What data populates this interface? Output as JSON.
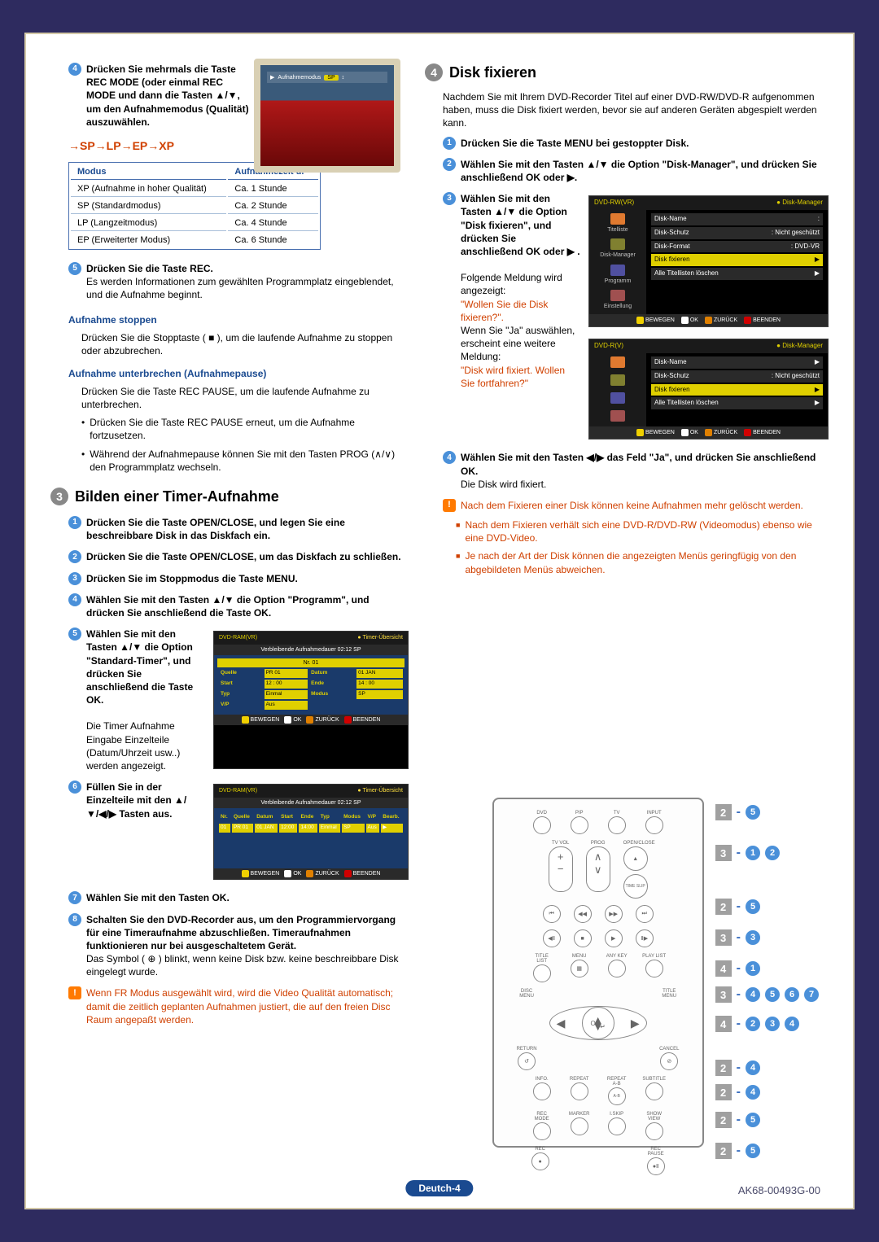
{
  "colors": {
    "page_bg": "#2e2b5f",
    "panel_bg": "#ffffff",
    "panel_border": "#d4c9a8",
    "accent_blue": "#1a4a90",
    "accent_orange": "#d04000",
    "step_blue": "#4a90d9",
    "warn_orange": "#ff7a00",
    "yellow": "#e0d000"
  },
  "left": {
    "step4_text": "Drücken Sie mehrmals die Taste REC MODE (oder einmal REC MODE und dann die Tasten ▲/▼, um den Aufnahmemodus (Qualität) auszuwählen.",
    "cycle": "→SP→LP→EP→XP",
    "tv_bar_label": "Aufnahmemodus",
    "tv_bar_mode": "SP",
    "mode_table": {
      "head_modus": "Modus",
      "head_zeit": "Aufnahmezeit u.",
      "rows": [
        [
          "XP (Aufnahme in hoher Qualität)",
          "Ca. 1 Stunde"
        ],
        [
          "SP (Standardmodus)",
          "Ca. 2 Stunde"
        ],
        [
          "LP (Langzeitmodus)",
          "Ca. 4 Stunde"
        ],
        [
          "EP (Erweiterter Modus)",
          "Ca. 6 Stunde"
        ]
      ]
    },
    "step5_head": "Drücken Sie die Taste REC.",
    "step5_body": "Es werden Informationen zum gewählten Programmplatz eingeblendet, und die Aufnahme beginnt.",
    "stop_head": "Aufnahme stoppen",
    "stop_body": "Drücken Sie die Stopptaste ( ■ ), um die laufende Aufnahme zu stoppen oder abzubrechen.",
    "pause_head": "Aufnahme unterbrechen (Aufnahmepause)",
    "pause_body": "Drücken Sie die Taste REC PAUSE, um die laufende Aufnahme zu unterbrechen.",
    "pause_b1": "Drücken Sie die Taste REC PAUSE erneut, um die Aufnahme fortzusetzen.",
    "pause_b2": "Während der Aufnahmepause können Sie mit den Tasten PROG (∧/∨) den Programmplatz wechseln.",
    "sec3_title": "Bilden einer Timer-Aufnahme",
    "sec3_num": "3",
    "s3_1": "Drücken Sie die Taste OPEN/CLOSE, und legen Sie eine beschreibbare Disk in das Diskfach ein.",
    "s3_2": "Drücken Sie die Taste OPEN/CLOSE, um das Diskfach zu schließen.",
    "s3_3": "Drücken Sie im Stoppmodus die Taste MENU.",
    "s3_4": "Wählen Sie mit den Tasten ▲/▼ die Option \"Programm\", und drücken Sie anschließend die Taste OK.",
    "s3_5": "Wählen Sie mit den Tasten ▲/▼ die Option \"Standard-Timer\", und drücken Sie anschließend die Taste OK.",
    "s3_5b": "Die Timer Aufnahme Eingabe Einzelteile (Datum/Uhrzeit usw..) werden angezeigt.",
    "s3_6": "Füllen Sie in der Einzelteile mit den ▲/▼/◀/▶ Tasten aus.",
    "s3_7": "Wählen Sie mit den Tasten OK.",
    "s3_8_head": "Schalten Sie den DVD-Recorder aus, um den Programmiervorgang für eine Timeraufnahme abzuschließen. Timeraufnahmen funktionieren nur bei ausgeschaltetem Gerät.",
    "s3_8b": "Das Symbol ( ⊕ ) blinkt, wenn keine Disk bzw. keine beschreibbare Disk eingelegt wurde.",
    "s3_warn": "Wenn FR Modus ausgewählt wird, wird die Video Qualität automatisch; damit die zeitlich geplanten Aufnahmen justiert, die auf den freien Disc Raum angepaßt werden."
  },
  "right": {
    "sec4_title": "Disk fixieren",
    "sec4_num": "4",
    "intro": "Nachdem Sie mit Ihrem DVD-Recorder Titel auf einer DVD-RW/DVD-R aufgenommen haben, muss die Disk fixiert werden, bevor sie auf anderen Geräten abgespielt werden kann.",
    "r1": "Drücken Sie die Taste MENU bei gestoppter Disk.",
    "r2": "Wählen Sie mit den Tasten ▲/▼ die Option \"Disk-Manager\", und drücken Sie anschließend OK oder ▶.",
    "r3": "Wählen Sie mit den Tasten ▲/▼ die Option \"Disk fixieren\", und drücken Sie anschließend OK oder ▶ .",
    "r3b": "Folgende Meldung wird angezeigt:",
    "r3c": "\"Wollen Sie die Disk fixieren?\".",
    "r3d": "Wenn Sie \"Ja\" auswählen, erscheint eine weitere Meldung:",
    "r3e": "\"Disk wird fixiert. Wollen Sie fortfahren?\"",
    "r4": "Wählen Sie mit den Tasten ◀/▶ das Feld \"Ja\", und drücken Sie anschließend OK.",
    "r4b": "Die Disk wird fixiert.",
    "warn": "Nach dem Fixieren einer Disk können keine Aufnahmen mehr gelöscht werden.",
    "warn_b1": "Nach dem Fixieren verhält sich eine DVD-R/DVD-RW (Videomodus) ebenso wie eine DVD-Video.",
    "warn_b2": "Je nach der Art der Disk können die angezeigten Menüs geringfügig von den abgebildeten Menüs abweichen."
  },
  "menu1": {
    "title_l": "DVD-RW(VR)",
    "title_r": "Disk-Manager",
    "side": [
      "Titelliste",
      "",
      "Disk-Manager",
      "Programm",
      "Einstellung"
    ],
    "rows": [
      [
        "Disk-Name",
        ":",
        ""
      ],
      [
        "Disk-Schutz",
        ": Nicht geschützt",
        ""
      ],
      [
        "Disk-Format",
        ": DVD-VR",
        ""
      ],
      [
        "Disk fixieren",
        "",
        "▶"
      ],
      [
        "Alle Titellisten löschen",
        "",
        "▶"
      ]
    ],
    "foot": [
      [
        "#f0d000",
        "BEWEGEN"
      ],
      [
        "#fff",
        "OK"
      ],
      [
        "#e08000",
        "ZURÜCK"
      ],
      [
        "#d00000",
        "BEENDEN"
      ]
    ]
  },
  "menu2": {
    "title_l": "DVD-R(V)",
    "title_r": "Disk-Manager",
    "rows": [
      [
        "Disk-Name",
        ":",
        "▶"
      ],
      [
        "Disk-Schutz",
        ": Nicht geschützt",
        "▶"
      ],
      [
        "Disk fixieren",
        "",
        "▶"
      ],
      [
        "Alle Titellisten löschen",
        "",
        "▶"
      ]
    ]
  },
  "timer1": {
    "title_l": "DVD-RAM(VR)",
    "title_r": "Timer-Übersicht",
    "sub": "Verbleibende Aufnahmedauer 02:12 SP",
    "nr": "Nr. 01",
    "fields": [
      [
        "Quelle",
        "PR 01"
      ],
      [
        "Datum",
        "01 JAN"
      ],
      [
        "Start",
        "12 : 00"
      ],
      [
        "Ende",
        "14 : 00"
      ],
      [
        "Typ",
        "Einmal"
      ],
      [
        "Modus",
        "SP"
      ],
      [
        "V/P",
        "Aus"
      ]
    ]
  },
  "timer2": {
    "title_l": "DVD-RAM(VR)",
    "title_r": "Timer-Übersicht",
    "sub": "Verbleibende Aufnahmedauer 02:12 SP",
    "head": [
      "Nr.",
      "Quelle",
      "Datum",
      "Start",
      "Ende",
      "Typ",
      "Modus",
      "V/P",
      "Bearb."
    ],
    "row": [
      "01",
      "PR 01",
      "01 JAN",
      "12:00",
      "14:00",
      "Einmal",
      "SP",
      "Aus",
      "▶"
    ]
  },
  "remote": {
    "row1": [
      "DVD",
      "PIP",
      "TV",
      "INPUT"
    ],
    "tvvol": "TV VOL",
    "prog": "PROG",
    "openclose": "OPEN/CLOSE",
    "timeslip": "TIME SLIP",
    "titlelist": "TITLE LIST",
    "menu": "MENU",
    "anykey": "ANY KEY",
    "playlist": "PLAY LIST",
    "discmenu": "DISC MENU",
    "titlemenu": "TITLE MENU",
    "ok": "OK",
    "return": "RETURN",
    "cancel": "CANCEL",
    "info": "INFO.",
    "repeat": "REPEAT",
    "repeat2": "REPEAT A-B",
    "subtitle": "SUBTITLE",
    "recmode": "REC MODE",
    "marker": "MARKER",
    "ipskip": "I.SKIP",
    "showview": "SHOW VIEW",
    "rec": "REC",
    "recpause": "REC PAUSE"
  },
  "callouts": [
    {
      "sq": "2",
      "steps": [
        "5"
      ]
    },
    {
      "sq": "3",
      "steps": [
        "1",
        "2"
      ]
    },
    {
      "sq": "2",
      "steps": [
        "5"
      ]
    },
    {
      "sq": "3",
      "steps": [
        "3"
      ]
    },
    {
      "sq": "4",
      "steps": [
        "1"
      ]
    },
    {
      "sq": "3",
      "steps": [
        "4",
        "5",
        "6",
        "7"
      ]
    },
    {
      "sq": "4",
      "steps": [
        "2",
        "3",
        "4"
      ]
    },
    {
      "sq": "2",
      "steps": [
        "4"
      ]
    },
    {
      "sq": "2",
      "steps": [
        "4"
      ]
    },
    {
      "sq": "2",
      "steps": [
        "5"
      ]
    },
    {
      "sq": "2",
      "steps": [
        "5"
      ]
    }
  ],
  "footer": {
    "pill": "Deutch-4",
    "code": "AK68-00493G-00"
  }
}
